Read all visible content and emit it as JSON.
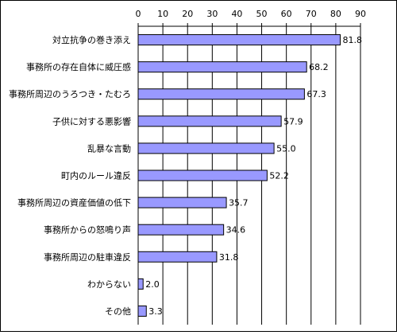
{
  "chart_data": {
    "type": "bar",
    "orientation": "horizontal",
    "categories": [
      "対立抗争の巻き添え",
      "事務所の存在自体に威圧感",
      "事務所周辺のうろつき・たむろ",
      "子供に対する悪影響",
      "乱暴な言動",
      "町内のルール違反",
      "事務所周辺の資産価値の低下",
      "事務所からの怒鳴り声",
      "事務所周辺の駐車違反",
      "わからない",
      "その他"
    ],
    "values": [
      81.8,
      68.2,
      67.3,
      57.9,
      55.0,
      52.2,
      35.7,
      34.6,
      31.8,
      2.0,
      3.3
    ],
    "value_labels": [
      "81.8",
      "68.2",
      "67.3",
      "57.9",
      "55.0",
      "52.2",
      "35.7",
      "34.6",
      "31.8",
      "2.0",
      "3.3"
    ],
    "xlim": [
      0,
      90
    ],
    "xticks": [
      0,
      10,
      20,
      30,
      40,
      50,
      60,
      70,
      80,
      90
    ],
    "x_axis_position": "top",
    "grid": true,
    "colors": {
      "bar_fill": "#9999ff",
      "bar_stroke": "#000000",
      "grid": "#000000"
    },
    "legend": "none"
  }
}
